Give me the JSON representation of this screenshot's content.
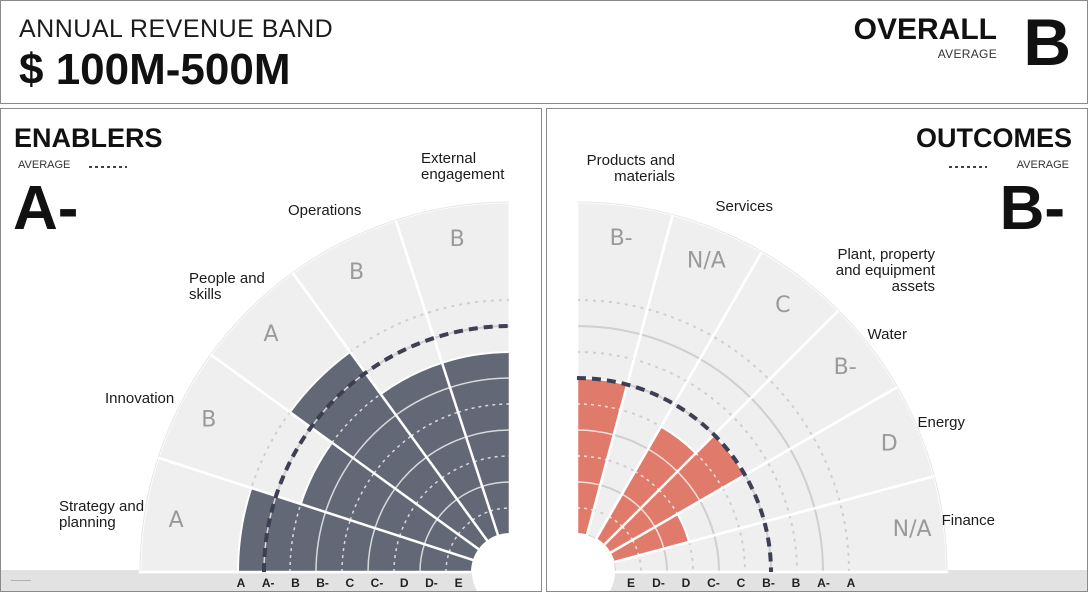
{
  "header": {
    "band_label": "ANNUAL REVENUE BAND",
    "band_value": "$ 100M-500M",
    "overall_label": "OVERALL",
    "overall_avg_label": "AVERAGE",
    "overall_grade": "B"
  },
  "colors": {
    "enablers_fill": "#636876",
    "outcomes_fill": "#e07b6b",
    "track_bg": "#efefef",
    "ring": "#cfcfcf",
    "avg_line": "#3d3f52",
    "grade_text": "#9a9a9a"
  },
  "chart_data": [
    {
      "type": "polar-bar",
      "title": "ENABLERS",
      "average_label": "AVERAGE",
      "average_grade": "A-",
      "scale": [
        "E",
        "D-",
        "D",
        "C-",
        "C",
        "B-",
        "B",
        "A-",
        "A"
      ],
      "axis_ticks": [
        "A",
        "A-",
        "B",
        "B-",
        "C",
        "C-",
        "D",
        "D-",
        "E"
      ],
      "categories": [
        {
          "label": "Strategy and planning",
          "grade": "A",
          "value": 9
        },
        {
          "label": "Innovation",
          "grade": "B",
          "value": 7
        },
        {
          "label": "People and skills",
          "grade": "A",
          "value": 9
        },
        {
          "label": "Operations",
          "grade": "B",
          "value": 7
        },
        {
          "label": "External engagement",
          "grade": "B",
          "value": 7
        }
      ],
      "average_value": 8
    },
    {
      "type": "polar-bar",
      "title": "OUTCOMES",
      "average_label": "AVERAGE",
      "average_grade": "B-",
      "scale": [
        "E",
        "D-",
        "D",
        "C-",
        "C",
        "B-",
        "B",
        "A-",
        "A"
      ],
      "axis_ticks": [
        "E",
        "D-",
        "D",
        "C-",
        "C",
        "B-",
        "B",
        "A-",
        "A"
      ],
      "categories": [
        {
          "label": "Products and materials",
          "grade": "B-",
          "value": 6
        },
        {
          "label": "Services",
          "grade": "N/A",
          "value": 0
        },
        {
          "label": "Plant, property and equipment assets",
          "grade": "C",
          "value": 5
        },
        {
          "label": "Water",
          "grade": "B-",
          "value": 6
        },
        {
          "label": "Energy",
          "grade": "D",
          "value": 3
        },
        {
          "label": "Finance",
          "grade": "N/A",
          "value": 0
        }
      ],
      "average_value": 6
    }
  ]
}
